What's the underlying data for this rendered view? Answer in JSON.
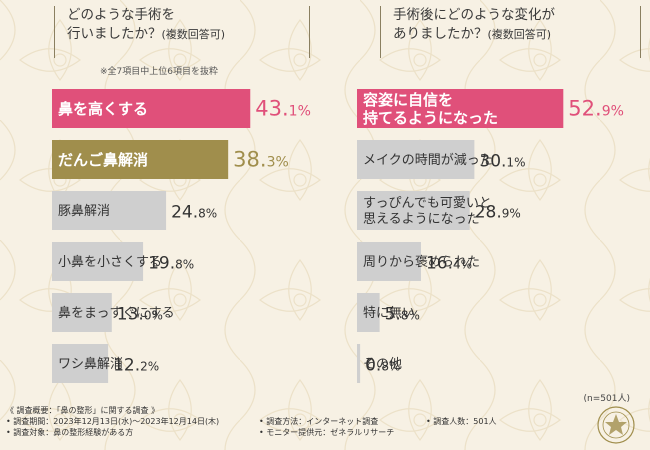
{
  "left_title": {
    "line1": "どのような手術を",
    "line2": "行いましたか？",
    "paren": "(複数回答可)"
  },
  "note": "※全7項目中上位6項目を抜粋",
  "right_title": {
    "line1": "手術後にどのような変化が",
    "line2": "ありましたか？",
    "paren": "(複数回答可)"
  },
  "n_label": "(n=501人)",
  "footer": {
    "heading": "《 調査概要：「鼻の整形」に関する調査 》",
    "period": "• 調査期間：2023年12月13日(水)～2023年12月14日(木)",
    "target": "• 調査対象：鼻の整形経験がある方",
    "method": "• 調査方法：インターネット調査",
    "provider": "• モニター提供元：ゼネラルリサーチ",
    "people": "• 調査人数：501人"
  },
  "colors": {
    "pink": "#e0507a",
    "olive": "#a08e4c",
    "gray": "#cfcfcf",
    "bg": "#f7f1e4"
  },
  "chart_data": [
    {
      "type": "bar",
      "orientation": "horizontal",
      "categories": [
        "鼻を高くする",
        "だんご鼻解消",
        "豚鼻解消",
        "小鼻を小さくする",
        "鼻をまっすぐにする",
        "ワシ鼻解消"
      ],
      "values": [
        43.1,
        38.3,
        24.8,
        19.8,
        13.0,
        12.2
      ],
      "value_labels": [
        [
          "43.",
          "1",
          "%"
        ],
        [
          "38.",
          "3",
          "%"
        ],
        [
          "24.",
          "8",
          "%"
        ],
        [
          "19.",
          "8",
          "%"
        ],
        [
          "13.",
          "0",
          "%"
        ],
        [
          "12.",
          "2",
          "%"
        ]
      ],
      "highlight": [
        "pink",
        "olive",
        "gray",
        "gray",
        "gray",
        "gray"
      ],
      "xlim": [
        0,
        100
      ]
    },
    {
      "type": "bar",
      "orientation": "horizontal",
      "categories": [
        [
          "容姿に自信を",
          "持てるようになった"
        ],
        [
          "メイクの時間が減った"
        ],
        [
          "すっぴんでも可愛いと",
          "思えるようになった"
        ],
        [
          "周りから褒められた"
        ],
        [
          "特に無い"
        ],
        [
          "その他"
        ]
      ],
      "values": [
        52.9,
        30.1,
        28.9,
        16.4,
        5.8,
        0.8
      ],
      "value_labels": [
        [
          "52.",
          "9",
          "%"
        ],
        [
          "30.",
          "1",
          "%"
        ],
        [
          "28.",
          "9",
          "%"
        ],
        [
          "16.",
          "4",
          "%"
        ],
        [
          "5.",
          "8",
          "%"
        ],
        [
          "0.",
          "8",
          "%"
        ]
      ],
      "highlight": [
        "pink",
        "gray",
        "gray",
        "gray",
        "gray",
        "gray"
      ],
      "xlim": [
        0,
        100
      ]
    }
  ]
}
